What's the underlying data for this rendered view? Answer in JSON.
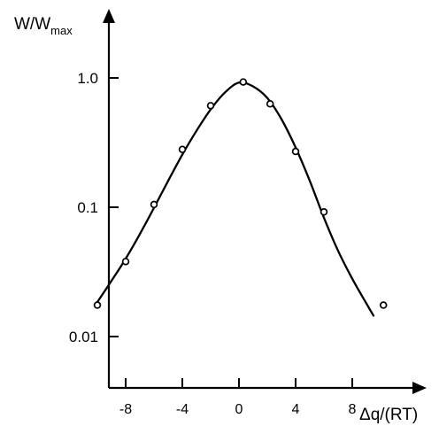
{
  "chart_data": {
    "type": "scatter",
    "ylabel": "W/W",
    "ylabel_sub": "max",
    "xlabel": "Δq/(RT)",
    "y_scale": "log",
    "y_ticks": [
      {
        "value": 1.0,
        "label": "1.0"
      },
      {
        "value": 0.1,
        "label": "0.1"
      },
      {
        "value": 0.01,
        "label": "0.01"
      }
    ],
    "x_ticks": [
      {
        "value": -8,
        "label": "-8"
      },
      {
        "value": -4,
        "label": "-4"
      },
      {
        "value": 0,
        "label": "0"
      },
      {
        "value": 4,
        "label": "4"
      },
      {
        "value": 8,
        "label": "8"
      }
    ],
    "xlim": [
      -10,
      12.5
    ],
    "ylim": [
      0.0017,
      2.0
    ],
    "grid": false,
    "legend": "none",
    "series": [
      {
        "kind": "points",
        "marker": "open-circle",
        "x": [
          -10,
          -8,
          -6,
          -4,
          -2,
          0.3,
          2.2,
          4,
          6,
          10.2
        ],
        "y": [
          0.0175,
          0.038,
          0.105,
          0.28,
          0.61,
          0.93,
          0.63,
          0.27,
          0.092,
          0.0175
        ]
      },
      {
        "kind": "fitted-curve",
        "color": "#000000",
        "x": [
          -10,
          -9,
          -8,
          -7,
          -6,
          -5,
          -4,
          -3,
          -2,
          -1,
          0,
          1,
          2,
          3,
          4,
          5,
          6,
          7,
          8,
          9,
          9.5
        ],
        "y": [
          0.0185,
          0.027,
          0.04,
          0.062,
          0.099,
          0.16,
          0.255,
          0.39,
          0.57,
          0.77,
          0.92,
          0.86,
          0.7,
          0.48,
          0.29,
          0.16,
          0.083,
          0.046,
          0.028,
          0.018,
          0.0145
        ]
      }
    ]
  }
}
